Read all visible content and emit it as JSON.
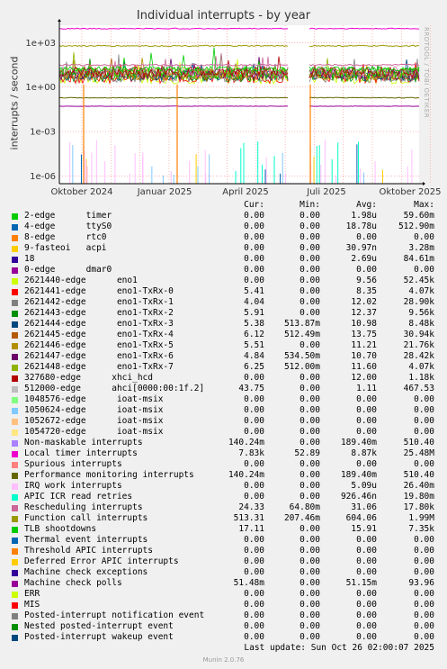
{
  "chart_data": {
    "type": "line",
    "title": "Individual interrupts - by year",
    "ylabel": "interrupts / second",
    "yscale": "log",
    "ylim": [
      3e-07,
      15000.0
    ],
    "y_ticks": [
      "1e+03",
      "1e+00",
      "1e-03",
      "1e-06"
    ],
    "x_ticks": [
      "Oktober 2024",
      "Januar 2025",
      "April 2025",
      "Juli 2025",
      "Oktober 2025"
    ],
    "grid": true,
    "columns": [
      "Cur:",
      "Min:",
      "Avg:",
      "Max:"
    ],
    "series": [
      {
        "name": "2-edge      timer",
        "color": "#00cc00",
        "cur": "0.00",
        "min": "0.00",
        "avg": "1.98u",
        "max": "59.60m"
      },
      {
        "name": "4-edge      ttyS0",
        "color": "#0066b3",
        "cur": "0.00",
        "min": "0.00",
        "avg": "18.78u",
        "max": "512.90m"
      },
      {
        "name": "8-edge      rtc0",
        "color": "#ff8000",
        "cur": "0.00",
        "min": "0.00",
        "avg": "0.00",
        "max": "0.00"
      },
      {
        "name": "9-fasteoi   acpi",
        "color": "#ffcc00",
        "cur": "0.00",
        "min": "0.00",
        "avg": "30.97n",
        "max": "3.28m"
      },
      {
        "name": "18",
        "color": "#330099",
        "cur": "0.00",
        "min": "0.00",
        "avg": "2.69u",
        "max": "84.61m"
      },
      {
        "name": "0-edge      dmar0",
        "color": "#990099",
        "cur": "0.00",
        "min": "0.00",
        "avg": "0.00",
        "max": "0.00"
      },
      {
        "name": "2621440-edge      eno1",
        "color": "#ccff00",
        "cur": "0.00",
        "min": "0.00",
        "avg": "9.56",
        "max": "52.45k"
      },
      {
        "name": "2621441-edge      eno1-TxRx-0",
        "color": "#ff0000",
        "cur": "5.41",
        "min": "0.00",
        "avg": "8.35",
        "max": "4.07k"
      },
      {
        "name": "2621442-edge      eno1-TxRx-1",
        "color": "#808080",
        "cur": "4.04",
        "min": "0.00",
        "avg": "12.02",
        "max": "28.90k"
      },
      {
        "name": "2621443-edge      eno1-TxRx-2",
        "color": "#008f00",
        "cur": "5.91",
        "min": "0.00",
        "avg": "12.37",
        "max": "9.56k"
      },
      {
        "name": "2621444-edge      eno1-TxRx-3",
        "color": "#00487d",
        "cur": "5.38",
        "min": "513.87m",
        "avg": "10.98",
        "max": "8.48k"
      },
      {
        "name": "2621445-edge      eno1-TxRx-4",
        "color": "#b35a00",
        "cur": "6.12",
        "min": "512.49m",
        "avg": "13.75",
        "max": "30.94k"
      },
      {
        "name": "2621446-edge      eno1-TxRx-5",
        "color": "#b38f00",
        "cur": "5.51",
        "min": "0.00",
        "avg": "11.21",
        "max": "21.76k"
      },
      {
        "name": "2621447-edge      eno1-TxRx-6",
        "color": "#6b006b",
        "cur": "4.84",
        "min": "534.50m",
        "avg": "10.70",
        "max": "28.42k"
      },
      {
        "name": "2621448-edge      eno1-TxRx-7",
        "color": "#8fb300",
        "cur": "6.25",
        "min": "512.00m",
        "avg": "11.60",
        "max": "4.07k"
      },
      {
        "name": "327680-edge      xhci_hcd",
        "color": "#b30000",
        "cur": "0.00",
        "min": "0.00",
        "avg": "12.00",
        "max": "1.18k"
      },
      {
        "name": "512000-edge      ahci[0000:00:1f.2]",
        "color": "#bebebe",
        "cur": "43.75",
        "min": "0.00",
        "avg": "1.11",
        "max": "467.53"
      },
      {
        "name": "1048576-edge      ioat-msix",
        "color": "#80ff80",
        "cur": "0.00",
        "min": "0.00",
        "avg": "0.00",
        "max": "0.00"
      },
      {
        "name": "1050624-edge      ioat-msix",
        "color": "#80c9ff",
        "cur": "0.00",
        "min": "0.00",
        "avg": "0.00",
        "max": "0.00"
      },
      {
        "name": "1052672-edge      ioat-msix",
        "color": "#ffc080",
        "cur": "0.00",
        "min": "0.00",
        "avg": "0.00",
        "max": "0.00"
      },
      {
        "name": "1054720-edge      ioat-msix",
        "color": "#ffe680",
        "cur": "0.00",
        "min": "0.00",
        "avg": "0.00",
        "max": "0.00"
      },
      {
        "name": "Non-maskable interrupts",
        "color": "#aa80ff",
        "cur": "140.24m",
        "min": "0.00",
        "avg": "189.40m",
        "max": "510.40"
      },
      {
        "name": "Local timer interrupts",
        "color": "#ee00cc",
        "cur": "7.83k",
        "min": "52.89",
        "avg": "8.87k",
        "max": "25.48M"
      },
      {
        "name": "Spurious interrupts",
        "color": "#ff8080",
        "cur": "0.00",
        "min": "0.00",
        "avg": "0.00",
        "max": "0.00"
      },
      {
        "name": "Performance monitoring interrupts",
        "color": "#666600",
        "cur": "140.24m",
        "min": "0.00",
        "avg": "189.40m",
        "max": "510.40"
      },
      {
        "name": "IRQ work interrupts",
        "color": "#ffbfff",
        "cur": "0.00",
        "min": "0.00",
        "avg": "5.09u",
        "max": "26.40m"
      },
      {
        "name": "APIC ICR read retries",
        "color": "#00ffcc",
        "cur": "0.00",
        "min": "0.00",
        "avg": "926.46n",
        "max": "19.80m"
      },
      {
        "name": "Rescheduling interrupts",
        "color": "#cc6699",
        "cur": "24.33",
        "min": "64.80m",
        "avg": "31.06",
        "max": "17.80k"
      },
      {
        "name": "Function call interrupts",
        "color": "#999900",
        "cur": "513.31",
        "min": "207.46m",
        "avg": "604.06",
        "max": "1.99M"
      },
      {
        "name": "TLB shootdowns",
        "color": "#00cc00",
        "cur": "17.11",
        "min": "0.00",
        "avg": "15.91",
        "max": "7.35k"
      },
      {
        "name": "Thermal event interrupts",
        "color": "#0066b3",
        "cur": "0.00",
        "min": "0.00",
        "avg": "0.00",
        "max": "0.00"
      },
      {
        "name": "Threshold APIC interrupts",
        "color": "#ff8000",
        "cur": "0.00",
        "min": "0.00",
        "avg": "0.00",
        "max": "0.00"
      },
      {
        "name": "Deferred Error APIC interrupts",
        "color": "#ffcc00",
        "cur": "0.00",
        "min": "0.00",
        "avg": "0.00",
        "max": "0.00"
      },
      {
        "name": "Machine check exceptions",
        "color": "#330099",
        "cur": "0.00",
        "min": "0.00",
        "avg": "0.00",
        "max": "0.00"
      },
      {
        "name": "Machine check polls",
        "color": "#990099",
        "cur": "51.48m",
        "min": "0.00",
        "avg": "51.15m",
        "max": "93.96"
      },
      {
        "name": "ERR",
        "color": "#ccff00",
        "cur": "0.00",
        "min": "0.00",
        "avg": "0.00",
        "max": "0.00"
      },
      {
        "name": "MIS",
        "color": "#ff0000",
        "cur": "0.00",
        "min": "0.00",
        "avg": "0.00",
        "max": "0.00"
      },
      {
        "name": "Posted-interrupt notification event",
        "color": "#808080",
        "cur": "0.00",
        "min": "0.00",
        "avg": "0.00",
        "max": "0.00"
      },
      {
        "name": "Nested posted-interrupt event",
        "color": "#008f00",
        "cur": "0.00",
        "min": "0.00",
        "avg": "0.00",
        "max": "0.00"
      },
      {
        "name": "Posted-interrupt wakeup event",
        "color": "#00487d",
        "cur": "0.00",
        "min": "0.00",
        "avg": "0.00",
        "max": "0.00"
      }
    ]
  },
  "footer": {
    "last_update": "Last update: Sun Oct 26 02:00:07 2025",
    "version": "Munin 2.0.76"
  },
  "watermark": "RRDTOOL / TOBI OETIKER"
}
